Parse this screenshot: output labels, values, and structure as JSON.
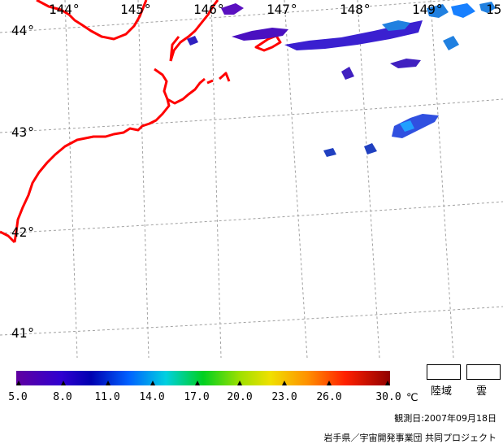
{
  "map": {
    "longitude_labels": [
      "144°",
      "145°",
      "146°",
      "147°",
      "148°",
      "149°",
      "15"
    ],
    "latitude_labels": [
      "44°",
      "43°",
      "42°",
      "41°"
    ]
  },
  "colorbar": {
    "ticks": [
      "5.0",
      "8.0",
      "11.0",
      "14.0",
      "17.0",
      "20.0",
      "23.0",
      "26.0",
      "30.0"
    ],
    "unit": "℃",
    "colors": [
      "#5a00a0",
      "#3c00c8",
      "#0000c8",
      "#0060ff",
      "#00c8ff",
      "#00e060",
      "#40e000",
      "#c8e000",
      "#ffd000",
      "#ff8000",
      "#ff2000",
      "#c00000",
      "#900000"
    ]
  },
  "legend": {
    "land_label": "陸域",
    "cloud_label": "雲"
  },
  "footer": {
    "observation_date": "観測日:2007年09月18日",
    "credit": "岩手県／宇宙開発事業団 共同プロジェクト"
  },
  "colors": {
    "coastline": "#ff0000",
    "grid": "#a0a0a0"
  }
}
